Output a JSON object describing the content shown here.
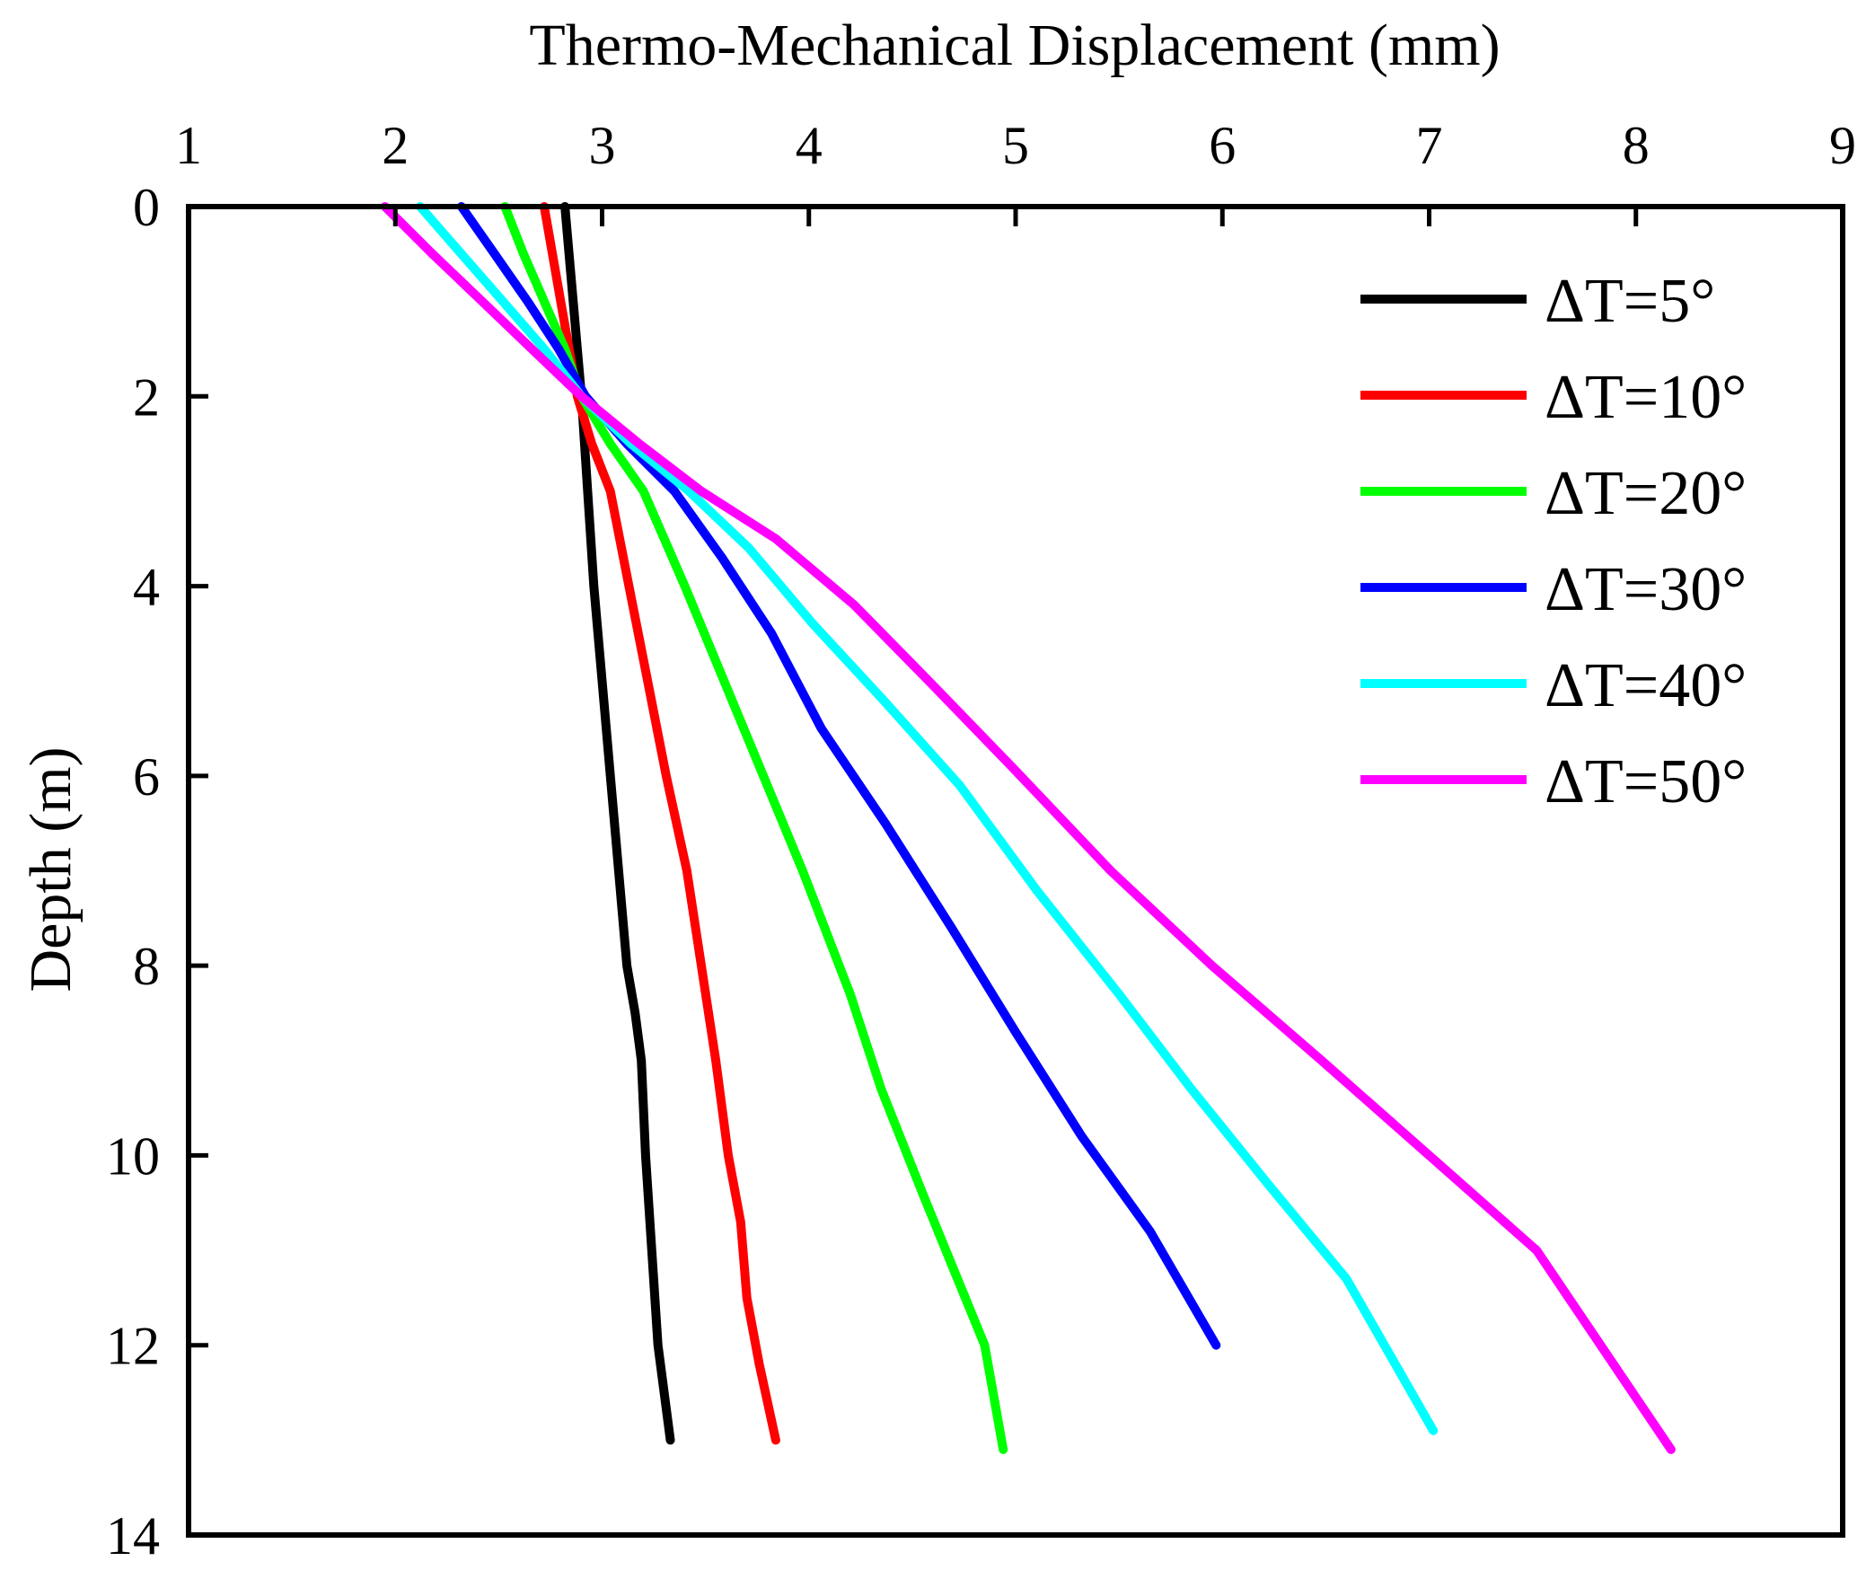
{
  "chart_data": {
    "type": "line",
    "title": "",
    "xlabel": "Thermo-Mechanical Displacement (mm)",
    "ylabel": "Depth (m)",
    "xlim": [
      1,
      9
    ],
    "ylim": [
      0,
      14
    ],
    "y_inverted": true,
    "x_axis_position": "top",
    "x_ticks": [
      "1",
      "2",
      "3",
      "4",
      "5",
      "6",
      "7",
      "8",
      "9"
    ],
    "y_ticks": [
      "0",
      "2",
      "4",
      "6",
      "8",
      "10",
      "12",
      "14"
    ],
    "grid": false,
    "legend_position": "top-right",
    "series": [
      {
        "name": "ΔT=5°",
        "color": "#000000",
        "x": [
          2.82,
          2.84,
          2.86,
          2.88,
          2.9,
          2.93,
          2.96,
          3.0,
          3.04,
          3.08,
          3.12,
          3.16,
          3.19,
          3.21,
          3.24,
          3.27,
          3.3,
          3.33
        ],
        "y": [
          0.0,
          0.5,
          1.0,
          1.5,
          2.0,
          3.0,
          4.0,
          5.0,
          6.0,
          7.0,
          8.0,
          8.5,
          9.0,
          10.0,
          11.0,
          12.0,
          12.5,
          13.0
        ]
      },
      {
        "name": "ΔT=10°",
        "color": "#ff0000",
        "x": [
          2.72,
          2.76,
          2.8,
          2.84,
          2.88,
          2.95,
          3.04,
          3.13,
          3.22,
          3.31,
          3.41,
          3.48,
          3.55,
          3.61,
          3.67,
          3.7,
          3.76,
          3.84
        ],
        "y": [
          0.0,
          0.5,
          1.0,
          1.5,
          2.0,
          2.5,
          3.0,
          4.0,
          5.0,
          6.0,
          7.0,
          8.0,
          9.0,
          10.0,
          10.7,
          11.5,
          12.2,
          13.0
        ]
      },
      {
        "name": "ΔT=20°",
        "color": "#00ff00",
        "x": [
          2.53,
          2.62,
          2.72,
          2.82,
          2.9,
          3.04,
          3.2,
          3.4,
          3.59,
          3.78,
          3.97,
          4.2,
          4.35,
          4.55,
          4.7,
          4.85,
          4.94
        ],
        "y": [
          0.0,
          0.5,
          1.0,
          1.5,
          2.0,
          2.5,
          3.0,
          4.0,
          5.0,
          6.0,
          7.0,
          8.3,
          9.3,
          10.4,
          11.2,
          12.0,
          13.1
        ]
      },
      {
        "name": "ΔT=30°",
        "color": "#0000ff",
        "x": [
          2.32,
          2.48,
          2.64,
          2.79,
          2.92,
          3.12,
          3.35,
          3.58,
          3.82,
          4.06,
          4.37,
          4.69,
          5.0,
          5.32,
          5.65,
          5.97
        ],
        "y": [
          0.0,
          0.5,
          1.0,
          1.5,
          2.0,
          2.5,
          3.0,
          3.7,
          4.5,
          5.5,
          6.5,
          7.6,
          8.7,
          9.8,
          10.8,
          12.0
        ]
      },
      {
        "name": "ΔT=40°",
        "color": "#00ffff",
        "x": [
          2.12,
          2.32,
          2.52,
          2.72,
          2.9,
          3.14,
          3.42,
          3.71,
          4.02,
          4.36,
          4.73,
          5.1,
          5.5,
          5.85,
          6.22,
          6.6,
          7.02
        ],
        "y": [
          0.0,
          0.5,
          1.0,
          1.5,
          2.0,
          2.5,
          3.0,
          3.6,
          4.4,
          5.2,
          6.1,
          7.2,
          8.3,
          9.3,
          10.3,
          11.3,
          12.9
        ]
      },
      {
        "name": "ΔT=50°",
        "color": "#ff00ff",
        "x": [
          1.95,
          2.18,
          2.42,
          2.66,
          2.9,
          3.18,
          3.48,
          3.84,
          4.22,
          4.58,
          4.98,
          5.46,
          5.95,
          6.48,
          7.0,
          7.52,
          8.17
        ],
        "y": [
          0.0,
          0.5,
          1.0,
          1.5,
          2.0,
          2.5,
          3.0,
          3.5,
          4.2,
          5.0,
          5.9,
          7.0,
          8.0,
          9.0,
          10.0,
          11.0,
          13.1
        ]
      }
    ]
  }
}
